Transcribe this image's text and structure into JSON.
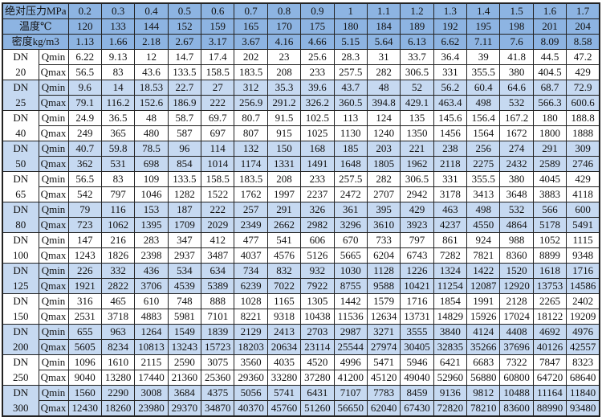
{
  "header": {
    "pressure_label": "绝对压力MPa",
    "temperature_label": "温度℃",
    "density_label": "密度kg/m3",
    "pressure": [
      "0.2",
      "0.3",
      "0.4",
      "0.5",
      "0.6",
      "0.7",
      "0.8",
      "0.9",
      "1",
      "1.1",
      "1.2",
      "1.3",
      "1.4",
      "1.5",
      "1.6",
      "1.7"
    ],
    "temperature": [
      "120",
      "133",
      "144",
      "152",
      "159",
      "165",
      "170",
      "175",
      "180",
      "184",
      "189",
      "192",
      "195",
      "198",
      "201",
      "204"
    ],
    "density": [
      "1.13",
      "1.66",
      "2.18",
      "2.67",
      "3.17",
      "3.67",
      "4.16",
      "4.66",
      "5.15",
      "5.64",
      "6.13",
      "6.62",
      "7.11",
      "7.6",
      "8.09",
      "8.58"
    ]
  },
  "qmin_label": "Qmin",
  "qmax_label": "Qmax",
  "dn_label": "DN",
  "colors": {
    "header": "#8db4e2",
    "alt_row": "#c6d9f1",
    "row": "#ffffff"
  },
  "groups": [
    {
      "dn": "20",
      "qmin": [
        "6.22",
        "9.13",
        "12",
        "14.7",
        "17.4",
        "202",
        "23",
        "25.6",
        "28.3",
        "31",
        "33.7",
        "36.4",
        "39",
        "41.8",
        "44.5",
        "47.2"
      ],
      "qmax": [
        "56.5",
        "83",
        "43.6",
        "133.5",
        "158.5",
        "183.5",
        "208",
        "233",
        "257.5",
        "282",
        "306.5",
        "331",
        "355.5",
        "380",
        "404.5",
        "429"
      ]
    },
    {
      "dn": "25",
      "qmin": [
        "9.6",
        "14",
        "18.53",
        "22.7",
        "27",
        "312",
        "35.3",
        "39.6",
        "43.7",
        "48",
        "52",
        "56.2",
        "60.4",
        "64.6",
        "68.7",
        "72.9"
      ],
      "qmax": [
        "79.1",
        "116.2",
        "152.6",
        "186.9",
        "222",
        "256.9",
        "291.2",
        "326.2",
        "360.5",
        "394.8",
        "429.1",
        "463.4",
        "498",
        "532",
        "566.3",
        "600.6"
      ]
    },
    {
      "dn": "40",
      "qmin": [
        "24.9",
        "36.5",
        "48",
        "58.7",
        "69.7",
        "80.7",
        "91.5",
        "102.5",
        "113",
        "124",
        "135",
        "145.6",
        "156.4",
        "167.2",
        "180",
        "188.8"
      ],
      "qmax": [
        "249",
        "365",
        "480",
        "587",
        "697",
        "807",
        "915",
        "1025",
        "1130",
        "1240",
        "1350",
        "1456",
        "1564",
        "1672",
        "1800",
        "1888"
      ]
    },
    {
      "dn": "50",
      "qmin": [
        "40.7",
        "59.8",
        "78.5",
        "96",
        "114",
        "132",
        "150",
        "168",
        "185",
        "203",
        "221",
        "238",
        "256",
        "274",
        "291",
        "309"
      ],
      "qmax": [
        "362",
        "531",
        "698",
        "854",
        "1014",
        "1174",
        "1331",
        "1491",
        "1648",
        "1805",
        "1962",
        "2118",
        "2275",
        "2432",
        "2589",
        "2746"
      ]
    },
    {
      "dn": "65",
      "qmin": [
        "56.5",
        "83",
        "109",
        "133.5",
        "158.5",
        "183.5",
        "208",
        "233",
        "257.5",
        "282",
        "306.5",
        "331",
        "355.5",
        "380",
        "4045",
        "429"
      ],
      "qmax": [
        "542",
        "797",
        "1046",
        "1282",
        "1522",
        "1762",
        "1997",
        "2237",
        "2472",
        "2707",
        "2942",
        "3178",
        "3413",
        "3648",
        "3883",
        "4118"
      ]
    },
    {
      "dn": "80",
      "qmin": [
        "79",
        "116",
        "153",
        "187",
        "222",
        "257",
        "291",
        "326",
        "361",
        "395",
        "429",
        "463",
        "498",
        "532",
        "566",
        "600"
      ],
      "qmax": [
        "723",
        "1062",
        "1395",
        "1709",
        "2029",
        "2349",
        "2662",
        "2982",
        "3296",
        "3610",
        "3923",
        "4237",
        "4550",
        "4864",
        "5178",
        "5491"
      ]
    },
    {
      "dn": "100",
      "qmin": [
        "147",
        "216",
        "283",
        "347",
        "412",
        "477",
        "541",
        "606",
        "670",
        "733",
        "797",
        "861",
        "924",
        "988",
        "1052",
        "1115"
      ],
      "qmax": [
        "1243",
        "1826",
        "2398",
        "2937",
        "3487",
        "4037",
        "4576",
        "5126",
        "5665",
        "6204",
        "6743",
        "7282",
        "7821",
        "8360",
        "8899",
        "9348"
      ]
    },
    {
      "dn": "125",
      "qmin": [
        "226",
        "332",
        "436",
        "534",
        "634",
        "734",
        "832",
        "932",
        "1030",
        "1128",
        "1226",
        "1324",
        "1422",
        "1520",
        "1618",
        "1716"
      ],
      "qmax": [
        "1921",
        "2822",
        "3706",
        "4539",
        "5389",
        "6239",
        "7022",
        "7922",
        "8755",
        "9588",
        "10421",
        "11254",
        "12087",
        "12920",
        "13753",
        "14586"
      ]
    },
    {
      "dn": "150",
      "qmin": [
        "316",
        "465",
        "610",
        "748",
        "888",
        "1028",
        "1165",
        "1305",
        "1442",
        "1579",
        "1716",
        "1854",
        "1991",
        "2128",
        "2265",
        "2402"
      ],
      "qmax": [
        "2531",
        "3718",
        "4883",
        "5981",
        "7101",
        "8221",
        "9318",
        "10438",
        "11536",
        "12634",
        "13731",
        "14829",
        "15926",
        "17024",
        "18122",
        "19209"
      ]
    },
    {
      "dn": "200",
      "qmin": [
        "655",
        "963",
        "1264",
        "1549",
        "1839",
        "2129",
        "2413",
        "2703",
        "2987",
        "3271",
        "3555",
        "3840",
        "4124",
        "4408",
        "4692",
        "4976"
      ],
      "qmax": [
        "5605",
        "8234",
        "10813",
        "13243",
        "15723",
        "18203",
        "20634",
        "23114",
        "25544",
        "27974",
        "30405",
        "32835",
        "35266",
        "37696",
        "40126",
        "42557"
      ]
    },
    {
      "dn": "250",
      "qmin": [
        "1096",
        "1610",
        "2115",
        "2590",
        "3075",
        "3560",
        "4035",
        "4520",
        "4996",
        "5471",
        "5946",
        "6421",
        "6683",
        "7322",
        "7847",
        "8323"
      ],
      "qmax": [
        "9040",
        "13280",
        "17440",
        "21360",
        "25360",
        "29360",
        "33280",
        "37280",
        "41200",
        "45120",
        "49040",
        "52960",
        "56880",
        "60800",
        "64720",
        "68640"
      ]
    },
    {
      "dn": "300",
      "qmin": [
        "1560",
        "2290",
        "3008",
        "3684",
        "4375",
        "5056",
        "5741",
        "6431",
        "7107",
        "7783",
        "8459",
        "9136",
        "9812",
        "10488",
        "11164",
        "11840"
      ],
      "qmax": [
        "12430",
        "18260",
        "23980",
        "29370",
        "34870",
        "40370",
        "45760",
        "51260",
        "56650",
        "62040",
        "67430",
        "72820",
        "78210",
        "83600",
        "88990",
        "93480"
      ]
    }
  ]
}
